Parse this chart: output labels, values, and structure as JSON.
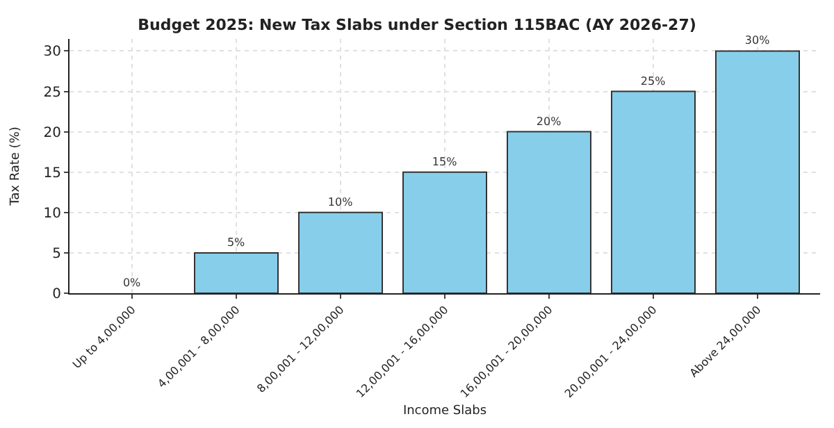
{
  "chart_data": {
    "type": "bar",
    "title": "Budget 2025: New Tax Slabs under Section 115BAC (AY 2026-27)",
    "xlabel": "Income Slabs",
    "ylabel": "Tax Rate (%)",
    "categories": [
      "Up to 4,00,000",
      "4,00,001 - 8,00,000",
      "8,00,001 - 12,00,000",
      "12,00,001 - 16,00,000",
      "16,00,001 - 20,00,000",
      "20,00,001 - 24,00,000",
      "Above 24,00,000"
    ],
    "values": [
      0,
      5,
      10,
      15,
      20,
      25,
      30
    ],
    "value_labels": [
      "0%",
      "5%",
      "10%",
      "15%",
      "20%",
      "25%",
      "30%"
    ],
    "color": "#87ceeb",
    "ylim": [
      0,
      31.5
    ],
    "yticks": [
      0,
      5,
      10,
      15,
      20,
      25,
      30
    ],
    "grid": true
  }
}
